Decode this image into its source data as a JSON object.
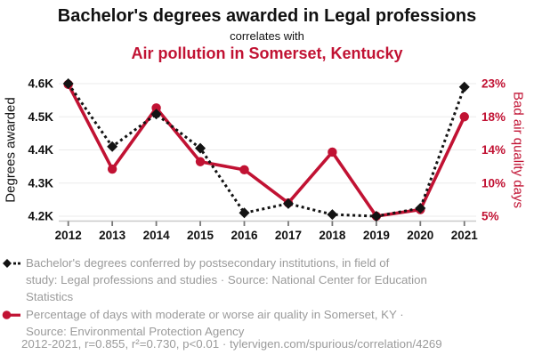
{
  "header": {
    "title": "Bachelor's degrees awarded in Legal professions",
    "connector": "correlates with",
    "subtitle": "Air pollution in Somerset, Kentucky"
  },
  "colors": {
    "accent_red": "#c11233",
    "series_black": "#131313",
    "grid": "#ebebeb",
    "axis_line": "#c9c9c9",
    "tick_mark": "#777777",
    "text_dark": "#111111",
    "muted_text": "#9b9b9b"
  },
  "chart_data": {
    "type": "line",
    "x": [
      2012,
      2013,
      2014,
      2015,
      2016,
      2017,
      2018,
      2019,
      2020,
      2021
    ],
    "series": [
      {
        "name": "Bachelor's degrees conferred by postsecondary institutions, in field of study: Legal professions and studies",
        "axis": "left",
        "style": "dotted",
        "marker": "diamond",
        "color": "#131313",
        "values": [
          4600,
          4410,
          4508,
          4405,
          4210,
          4238,
          4205,
          4200,
          4224,
          4590
        ]
      },
      {
        "name": "Percentage of days with moderate or worse air quality in Somerset, KY",
        "axis": "right",
        "style": "solid",
        "marker": "circle",
        "color": "#c11233",
        "values": [
          22.9,
          11.4,
          19.7,
          12.4,
          11.3,
          6.8,
          13.7,
          5.0,
          5.9,
          18.5
        ]
      }
    ],
    "left_axis": {
      "label": "Degrees awarded",
      "ticks": [
        "4.2K",
        "4.3K",
        "4.4K",
        "4.5K",
        "4.6K"
      ],
      "min": 4200,
      "max": 4600
    },
    "right_axis": {
      "label": "Bad air quality days",
      "ticks": [
        "5%",
        "10%",
        "14%",
        "18%",
        "23%"
      ],
      "min": 5,
      "max": 23
    },
    "grid": true,
    "legend_position": "bottom"
  },
  "legend": [
    {
      "marker": "black-diamond-dotted",
      "lines": [
        "Bachelor's degrees conferred by postsecondary institutions, in field of",
        "study: Legal professions and studies · Source: National Center for Education",
        "Statistics"
      ]
    },
    {
      "marker": "red-circle-solid",
      "lines": [
        "Percentage of days with moderate or worse air quality in Somerset, KY ·",
        "Source: Environmental Protection Agency"
      ]
    }
  ],
  "footer": {
    "text": "2012-2021, r=0.855, r²=0.730, p<0.01 · tylervigen.com/spurious/correlation/4269"
  }
}
